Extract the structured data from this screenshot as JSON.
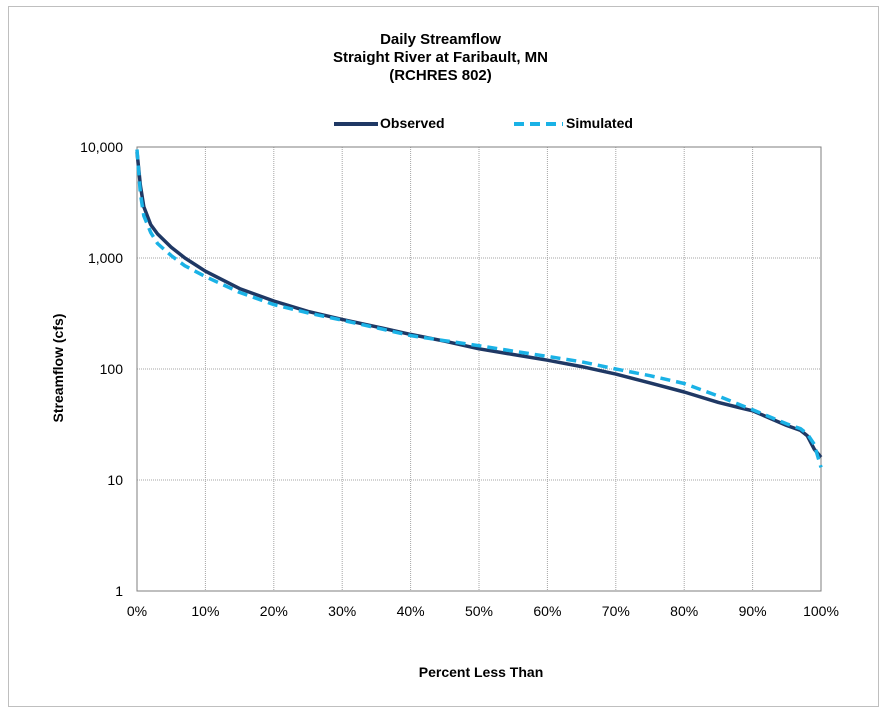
{
  "chart_data": {
    "type": "line",
    "title_lines": [
      "Daily Streamflow",
      "Straight River at Faribault, MN",
      "(RCHRES 802)"
    ],
    "xlabel": "Percent Less Than",
    "ylabel": "Streamflow (cfs)",
    "xlim": [
      0,
      100
    ],
    "ylim": [
      1,
      10000
    ],
    "yscale": "log",
    "grid": true,
    "legend_position": "top",
    "x_ticks": [
      "0%",
      "10%",
      "20%",
      "30%",
      "40%",
      "50%",
      "60%",
      "70%",
      "80%",
      "90%",
      "100%"
    ],
    "y_ticks": [
      "1",
      "10",
      "100",
      "1,000",
      "10,000"
    ],
    "series": [
      {
        "name": "Observed",
        "color": "#1f3864",
        "style": "solid",
        "x": [
          0,
          0.5,
          1,
          2,
          3,
          5,
          7,
          10,
          15,
          20,
          25,
          30,
          35,
          40,
          45,
          50,
          55,
          60,
          65,
          70,
          75,
          80,
          85,
          88,
          90,
          93,
          95,
          97,
          98,
          99,
          100
        ],
        "y": [
          9000,
          4500,
          2900,
          2000,
          1650,
          1250,
          1000,
          760,
          530,
          410,
          330,
          280,
          240,
          205,
          178,
          152,
          135,
          120,
          105,
          90,
          75,
          62,
          50,
          45,
          42,
          35,
          31,
          28,
          25,
          19,
          16
        ]
      },
      {
        "name": "Simulated",
        "color": "#1ab2e6",
        "style": "dashed",
        "x": [
          0,
          0.5,
          1,
          2,
          3,
          5,
          7,
          10,
          15,
          20,
          25,
          30,
          35,
          40,
          45,
          50,
          55,
          60,
          65,
          70,
          75,
          80,
          85,
          88,
          90,
          93,
          95,
          97,
          98,
          99,
          100
        ],
        "y": [
          9500,
          3800,
          2400,
          1700,
          1350,
          1050,
          850,
          680,
          490,
          380,
          320,
          275,
          235,
          200,
          180,
          162,
          145,
          130,
          116,
          100,
          87,
          74,
          57,
          48,
          43,
          36,
          32,
          29,
          26,
          21,
          13
        ]
      }
    ]
  }
}
